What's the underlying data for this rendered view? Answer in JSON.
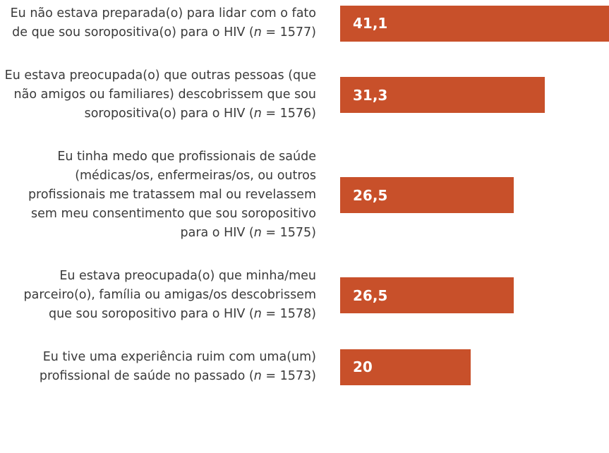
{
  "chart_data": {
    "type": "bar",
    "orientation": "horizontal",
    "categories": [
      "Eu não estava preparada(o) para lidar com o fato de que sou soropositiva(o) para o HIV (n = 1577)",
      "Eu estava preocupada(o) que outras pessoas (que não amigos ou familiares) descobrissem que sou soropositiva(o) para o HIV (n = 1576)",
      "Eu tinha medo que profissionais de saúde (médicas/os, enfermeiras/os, ou outros profissionais me tratassem mal ou revelassem sem meu consentimento que sou soropositivo para o HIV (n = 1575)",
      "Eu estava preocupada(o) que minha/meu parceiro(o), família ou amigas/os descobrissem que sou soropositivo para o HIV (n = 1578)",
      "Eu tive uma experiência ruim com uma(um) profissional de saúde no passado (n = 1573)"
    ],
    "values": [
      41.1,
      31.3,
      26.5,
      26.5,
      20
    ],
    "value_labels": [
      "41,1",
      "31,3",
      "26,5",
      "26,5",
      "20"
    ],
    "color": "#c8502a",
    "xlim": [
      0,
      41.1
    ]
  }
}
